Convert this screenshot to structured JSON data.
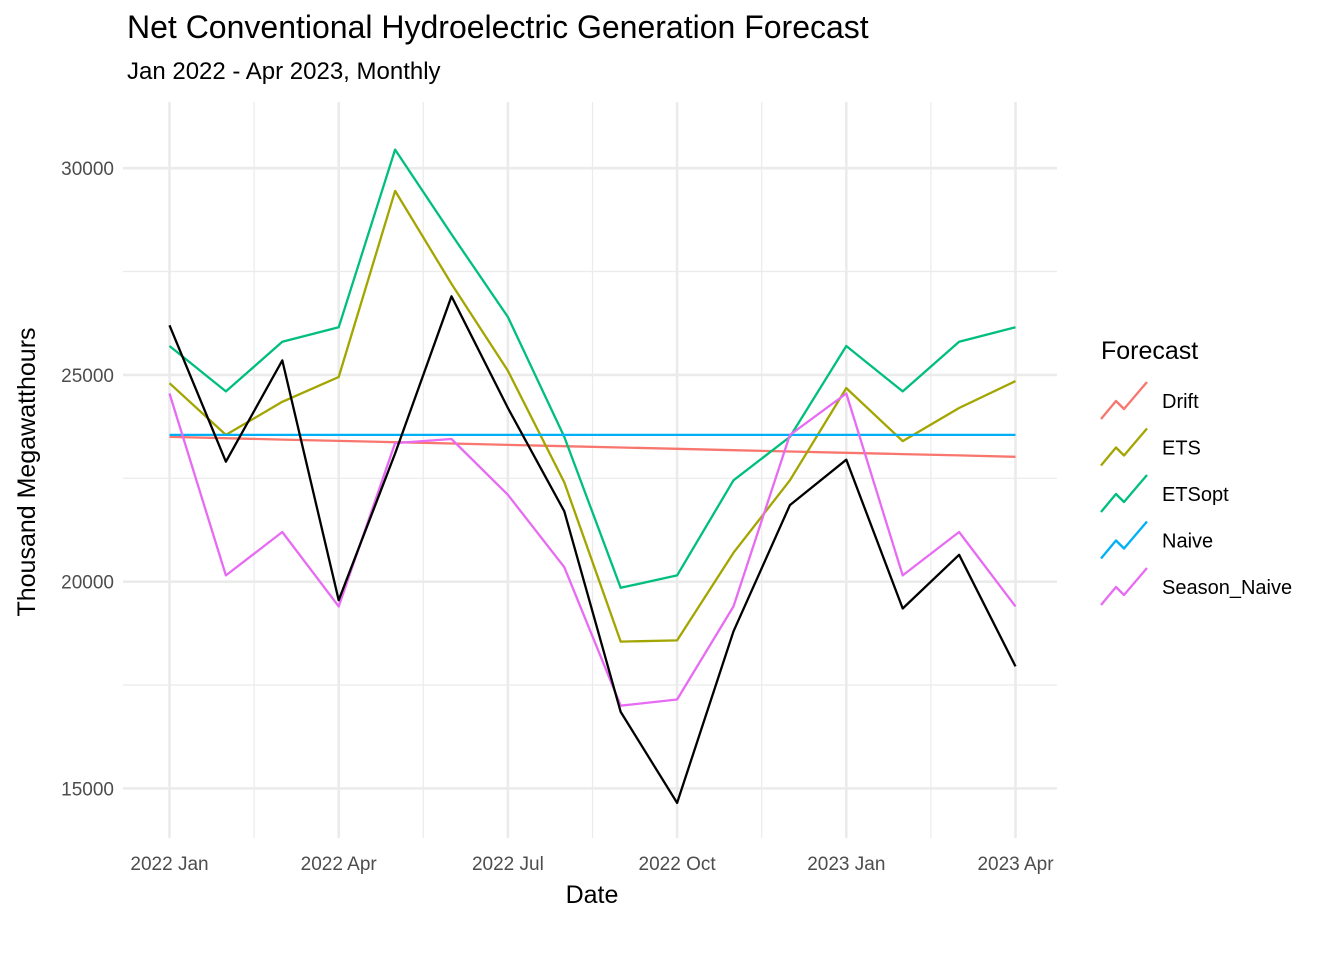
{
  "chart_data": {
    "type": "line",
    "title": "Net Conventional Hydroelectric Generation Forecast",
    "subtitle": "Jan 2022 - Apr 2023, Monthly",
    "xlabel": "Date",
    "ylabel": "Thousand Megawatthours",
    "x": [
      "2022-01",
      "2022-02",
      "2022-03",
      "2022-04",
      "2022-05",
      "2022-06",
      "2022-07",
      "2022-08",
      "2022-09",
      "2022-10",
      "2022-11",
      "2022-12",
      "2023-01",
      "2023-02",
      "2023-03",
      "2023-04"
    ],
    "x_ticks": [
      {
        "x": "2022-01",
        "label": "2022 Jan"
      },
      {
        "x": "2022-04",
        "label": "2022 Apr"
      },
      {
        "x": "2022-07",
        "label": "2022 Jul"
      },
      {
        "x": "2022-10",
        "label": "2022 Oct"
      },
      {
        "x": "2023-01",
        "label": "2023 Jan"
      },
      {
        "x": "2023-04",
        "label": "2023 Apr"
      }
    ],
    "ylim": [
      13800,
      31600
    ],
    "y_ticks": [
      15000,
      20000,
      25000,
      30000
    ],
    "grid": true,
    "legend": {
      "title": "Forecast",
      "position": "right"
    },
    "actual": {
      "color": "#000000",
      "values": [
        26200,
        22900,
        25350,
        19550,
        23100,
        26900,
        24200,
        21700,
        16850,
        14650,
        18800,
        21850,
        22950,
        19350,
        20650,
        17950
      ]
    },
    "series": [
      {
        "name": "Drift",
        "color": "#F8766D",
        "values": [
          23500,
          23468,
          23436,
          23404,
          23372,
          23340,
          23308,
          23276,
          23244,
          23212,
          23180,
          23148,
          23116,
          23084,
          23052,
          23020
        ]
      },
      {
        "name": "ETS",
        "color": "#A3A500",
        "values": [
          24800,
          23550,
          24350,
          24950,
          29450,
          27200,
          25100,
          22400,
          18550,
          18580,
          20700,
          22450,
          24680,
          23400,
          24200,
          24850
        ]
      },
      {
        "name": "ETSopt",
        "color": "#00BF7D",
        "values": [
          25700,
          24600,
          25800,
          26150,
          30450,
          28400,
          26400,
          23500,
          19850,
          20150,
          22450,
          23500,
          25700,
          24600,
          25800,
          26150
        ]
      },
      {
        "name": "Naive",
        "color": "#00B0F6",
        "values": [
          23550,
          23550,
          23550,
          23550,
          23550,
          23550,
          23550,
          23550,
          23550,
          23550,
          23550,
          23550,
          23550,
          23550,
          23550,
          23550
        ]
      },
      {
        "name": "Season_Naive",
        "color": "#E76BF3",
        "values": [
          24550,
          20150,
          21200,
          19400,
          23350,
          23450,
          22100,
          20350,
          17000,
          17150,
          19400,
          23550,
          24550,
          20150,
          21200,
          19400
        ]
      }
    ]
  }
}
